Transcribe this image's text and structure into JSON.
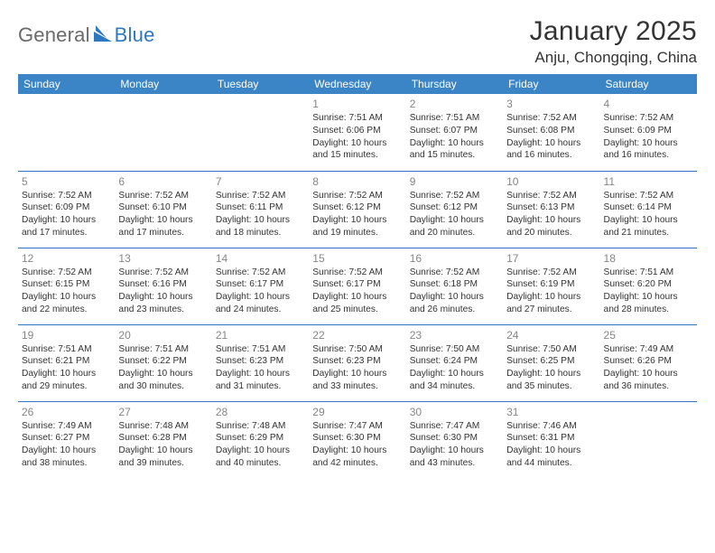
{
  "logo": {
    "text1": "General",
    "text2": "Blue"
  },
  "title": "January 2025",
  "location": "Anju, Chongqing, China",
  "header_bg": "#3b85c6",
  "border_color": "#2f78bf",
  "weekdays": [
    "Sunday",
    "Monday",
    "Tuesday",
    "Wednesday",
    "Thursday",
    "Friday",
    "Saturday"
  ],
  "weeks": [
    [
      null,
      null,
      null,
      {
        "n": "1",
        "sr": "7:51 AM",
        "ss": "6:06 PM",
        "dl": "10 hours and 15 minutes."
      },
      {
        "n": "2",
        "sr": "7:51 AM",
        "ss": "6:07 PM",
        "dl": "10 hours and 15 minutes."
      },
      {
        "n": "3",
        "sr": "7:52 AM",
        "ss": "6:08 PM",
        "dl": "10 hours and 16 minutes."
      },
      {
        "n": "4",
        "sr": "7:52 AM",
        "ss": "6:09 PM",
        "dl": "10 hours and 16 minutes."
      }
    ],
    [
      {
        "n": "5",
        "sr": "7:52 AM",
        "ss": "6:09 PM",
        "dl": "10 hours and 17 minutes."
      },
      {
        "n": "6",
        "sr": "7:52 AM",
        "ss": "6:10 PM",
        "dl": "10 hours and 17 minutes."
      },
      {
        "n": "7",
        "sr": "7:52 AM",
        "ss": "6:11 PM",
        "dl": "10 hours and 18 minutes."
      },
      {
        "n": "8",
        "sr": "7:52 AM",
        "ss": "6:12 PM",
        "dl": "10 hours and 19 minutes."
      },
      {
        "n": "9",
        "sr": "7:52 AM",
        "ss": "6:12 PM",
        "dl": "10 hours and 20 minutes."
      },
      {
        "n": "10",
        "sr": "7:52 AM",
        "ss": "6:13 PM",
        "dl": "10 hours and 20 minutes."
      },
      {
        "n": "11",
        "sr": "7:52 AM",
        "ss": "6:14 PM",
        "dl": "10 hours and 21 minutes."
      }
    ],
    [
      {
        "n": "12",
        "sr": "7:52 AM",
        "ss": "6:15 PM",
        "dl": "10 hours and 22 minutes."
      },
      {
        "n": "13",
        "sr": "7:52 AM",
        "ss": "6:16 PM",
        "dl": "10 hours and 23 minutes."
      },
      {
        "n": "14",
        "sr": "7:52 AM",
        "ss": "6:17 PM",
        "dl": "10 hours and 24 minutes."
      },
      {
        "n": "15",
        "sr": "7:52 AM",
        "ss": "6:17 PM",
        "dl": "10 hours and 25 minutes."
      },
      {
        "n": "16",
        "sr": "7:52 AM",
        "ss": "6:18 PM",
        "dl": "10 hours and 26 minutes."
      },
      {
        "n": "17",
        "sr": "7:52 AM",
        "ss": "6:19 PM",
        "dl": "10 hours and 27 minutes."
      },
      {
        "n": "18",
        "sr": "7:51 AM",
        "ss": "6:20 PM",
        "dl": "10 hours and 28 minutes."
      }
    ],
    [
      {
        "n": "19",
        "sr": "7:51 AM",
        "ss": "6:21 PM",
        "dl": "10 hours and 29 minutes."
      },
      {
        "n": "20",
        "sr": "7:51 AM",
        "ss": "6:22 PM",
        "dl": "10 hours and 30 minutes."
      },
      {
        "n": "21",
        "sr": "7:51 AM",
        "ss": "6:23 PM",
        "dl": "10 hours and 31 minutes."
      },
      {
        "n": "22",
        "sr": "7:50 AM",
        "ss": "6:23 PM",
        "dl": "10 hours and 33 minutes."
      },
      {
        "n": "23",
        "sr": "7:50 AM",
        "ss": "6:24 PM",
        "dl": "10 hours and 34 minutes."
      },
      {
        "n": "24",
        "sr": "7:50 AM",
        "ss": "6:25 PM",
        "dl": "10 hours and 35 minutes."
      },
      {
        "n": "25",
        "sr": "7:49 AM",
        "ss": "6:26 PM",
        "dl": "10 hours and 36 minutes."
      }
    ],
    [
      {
        "n": "26",
        "sr": "7:49 AM",
        "ss": "6:27 PM",
        "dl": "10 hours and 38 minutes."
      },
      {
        "n": "27",
        "sr": "7:48 AM",
        "ss": "6:28 PM",
        "dl": "10 hours and 39 minutes."
      },
      {
        "n": "28",
        "sr": "7:48 AM",
        "ss": "6:29 PM",
        "dl": "10 hours and 40 minutes."
      },
      {
        "n": "29",
        "sr": "7:47 AM",
        "ss": "6:30 PM",
        "dl": "10 hours and 42 minutes."
      },
      {
        "n": "30",
        "sr": "7:47 AM",
        "ss": "6:30 PM",
        "dl": "10 hours and 43 minutes."
      },
      {
        "n": "31",
        "sr": "7:46 AM",
        "ss": "6:31 PM",
        "dl": "10 hours and 44 minutes."
      },
      null
    ]
  ],
  "labels": {
    "sunrise": "Sunrise: ",
    "sunset": "Sunset: ",
    "daylight": "Daylight: "
  }
}
